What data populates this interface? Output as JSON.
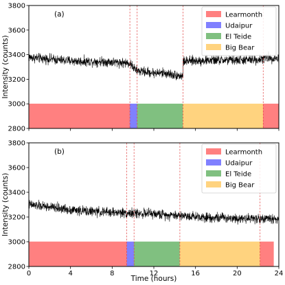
{
  "colors": {
    "Learmonth": "#ff8080",
    "Udaipur": "#8080ff",
    "El Teide": "#80c080",
    "Big Bear": "#ffd37f",
    "signal": "#000000",
    "boundary": "#e04040"
  },
  "xlabel": "Time (hours)",
  "chart_data": [
    {
      "type": "line",
      "panel_label": "(a)",
      "ylabel": "Intensity (counts)",
      "xlim": [
        0,
        24
      ],
      "ylim": [
        2800,
        3800
      ],
      "xticks": [
        0,
        4,
        8,
        12,
        16,
        20,
        24
      ],
      "yticks": [
        2800,
        3000,
        3200,
        3400,
        3600,
        3800
      ],
      "xticklabels": [
        "",
        "",
        "",
        "",
        "",
        "",
        ""
      ],
      "yticklabels": [
        "2800",
        "3000",
        "3200",
        "3400",
        "3600",
        "3800"
      ],
      "legend": [
        "Learmonth",
        "Udaipur",
        "El Teide",
        "Big Bear"
      ],
      "legend_position": "top-right",
      "station_bar": {
        "y_from": 2800,
        "y_to": 3000
      },
      "coverage": [
        {
          "station": "Learmonth",
          "start": 0,
          "end": 9.7
        },
        {
          "station": "Udaipur",
          "start": 9.7,
          "end": 10.4
        },
        {
          "station": "El Teide",
          "start": 10.4,
          "end": 14.8
        },
        {
          "station": "Big Bear",
          "start": 14.8,
          "end": 22.5
        },
        {
          "station": "Learmonth",
          "start": 22.5,
          "end": 24
        }
      ],
      "boundaries": [
        9.7,
        10.4,
        14.8,
        22.5
      ],
      "series_anchors": {
        "x": [
          0,
          1,
          2,
          3,
          4,
          5,
          6,
          7,
          8,
          9,
          9.7,
          10.3,
          11,
          12,
          13,
          14,
          14.8,
          14.81,
          16,
          18,
          20,
          22,
          23,
          24
        ],
        "y": [
          3380,
          3370,
          3365,
          3355,
          3350,
          3345,
          3345,
          3345,
          3340,
          3335,
          3330,
          3270,
          3262,
          3252,
          3250,
          3235,
          3225,
          3345,
          3350,
          3355,
          3355,
          3360,
          3375,
          3370
        ]
      },
      "noise_amplitude": 30
    },
    {
      "type": "line",
      "panel_label": "(b)",
      "ylabel": "Intensity (counts)",
      "xlim": [
        0,
        24
      ],
      "ylim": [
        2800,
        3800
      ],
      "xticks": [
        0,
        4,
        8,
        12,
        16,
        20,
        24
      ],
      "yticks": [
        2800,
        3000,
        3200,
        3400,
        3600,
        3800
      ],
      "xticklabels": [
        "0",
        "4",
        "8",
        "12",
        "16",
        "20",
        "24"
      ],
      "yticklabels": [
        "2800",
        "3000",
        "3200",
        "3400",
        "3600",
        "3800"
      ],
      "legend": [
        "Learmonth",
        "Udaipur",
        "El Teide",
        "Big Bear"
      ],
      "legend_position": "top-right",
      "station_bar": {
        "y_from": 2800,
        "y_to": 3000
      },
      "coverage": [
        {
          "station": "Learmonth",
          "start": 0,
          "end": 9.4
        },
        {
          "station": "Udaipur",
          "start": 9.4,
          "end": 10.1
        },
        {
          "station": "El Teide",
          "start": 10.1,
          "end": 14.5
        },
        {
          "station": "Big Bear",
          "start": 14.5,
          "end": 22.2
        },
        {
          "station": "Learmonth",
          "start": 22.2,
          "end": 23.5
        }
      ],
      "boundaries": [
        9.4,
        10.1,
        14.5,
        22.2
      ],
      "series_anchors": {
        "x": [
          0,
          1,
          2,
          3,
          4,
          5,
          6,
          7,
          8,
          9,
          10,
          11,
          12,
          13,
          14,
          15,
          16,
          17,
          18,
          19,
          20,
          21,
          22,
          23,
          24
        ],
        "y": [
          3300,
          3290,
          3280,
          3270,
          3260,
          3250,
          3245,
          3240,
          3238,
          3235,
          3230,
          3230,
          3225,
          3220,
          3215,
          3210,
          3205,
          3200,
          3195,
          3195,
          3190,
          3190,
          3188,
          3185,
          3185
        ]
      },
      "noise_amplitude": 30
    }
  ]
}
